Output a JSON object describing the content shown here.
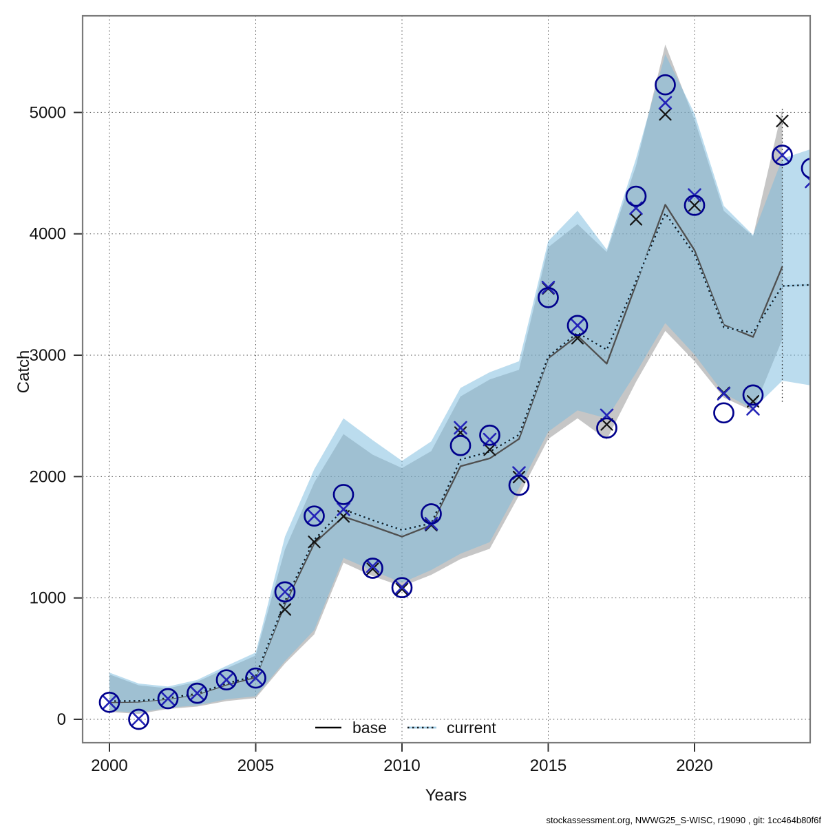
{
  "figure": {
    "xlabel": "Years",
    "ylabel": "Catch",
    "footer": "stockassessment.org, NWWG25_S-WISC, r19090 , git: 1cc464b80f6f",
    "legend": {
      "base_label": "base",
      "current_label": "current"
    }
  },
  "chart_data": {
    "type": "line",
    "title": "",
    "xlabel": "Years",
    "ylabel": "Catch",
    "grid": true,
    "legend_position": "bottom-center-inside",
    "legend": [
      "base",
      "current"
    ],
    "x_ticks": [
      2000,
      2005,
      2010,
      2015,
      2020
    ],
    "y_ticks": [
      0,
      1000,
      2000,
      3000,
      4000,
      5000
    ],
    "xlim": [
      1999.1,
      2023.95
    ],
    "ylim": [
      -190,
      5790
    ],
    "vline_year": 2023,
    "colors": {
      "observed_marker": "#00008c",
      "base_marker": "#141414",
      "current_marker": "#2323b8",
      "base_line": "#4f4f4f",
      "current_line_dark": "#131a20",
      "current_line_light": "#9ecbe4",
      "base_band": "rgba(128,128,128,0.45)",
      "current_band": "rgba(120,186,222,0.5)",
      "grid": "#4d4d4d",
      "frame": "#7a7a7a"
    },
    "years": [
      2000,
      2001,
      2002,
      2003,
      2004,
      2005,
      2006,
      2007,
      2008,
      2009,
      2010,
      2011,
      2012,
      2013,
      2014,
      2015,
      2016,
      2017,
      2018,
      2019,
      2020,
      2021,
      2022,
      2023,
      2024
    ],
    "series": [
      {
        "name": "observed-catch",
        "marker": "circle",
        "values": [
          140,
          0,
          170,
          215,
          325,
          340,
          1050,
          1675,
          1852,
          1245,
          1085,
          1693,
          2256,
          2341,
          1928,
          3475,
          3245,
          2400,
          4310,
          5228,
          4235,
          2525,
          2672,
          4648,
          4540
        ]
      },
      {
        "name": "base-estimate",
        "marker": "x",
        "values": [
          140,
          5,
          170,
          215,
          325,
          340,
          905,
          1462,
          1672,
          1240,
          1072,
          1600,
          2362,
          2222,
          1996,
          3550,
          3140,
          2430,
          4120,
          4985,
          4235,
          2690,
          2620,
          4930,
          null
        ]
      },
      {
        "name": "current-estimate",
        "marker": "x",
        "values": [
          140,
          5,
          170,
          215,
          325,
          340,
          1050,
          1675,
          1730,
          1262,
          1088,
          1612,
          2402,
          2305,
          2030,
          3558,
          3245,
          2505,
          4212,
          5080,
          4320,
          2683,
          2558,
          4648,
          4432
        ]
      },
      {
        "name": "base-fit",
        "style": "solid",
        "values": [
          140,
          145,
          168,
          205,
          285,
          345,
          950,
          1450,
          1670,
          1590,
          1505,
          1600,
          2085,
          2150,
          2310,
          2975,
          3160,
          2930,
          3585,
          4240,
          3865,
          3250,
          3150,
          3730,
          null
        ]
      },
      {
        "name": "current-fit",
        "style": "dotted",
        "values": [
          150,
          152,
          175,
          212,
          295,
          358,
          975,
          1480,
          1730,
          1640,
          1560,
          1615,
          2140,
          2205,
          2345,
          2990,
          3185,
          3045,
          3610,
          4170,
          3830,
          3230,
          3185,
          3570,
          3580
        ]
      }
    ],
    "bands": [
      {
        "name": "base-ci",
        "lo": [
          60,
          45,
          85,
          105,
          150,
          175,
          460,
          700,
          1290,
          1180,
          1095,
          1190,
          1320,
          1405,
          1845,
          2310,
          2480,
          2305,
          2780,
          3200,
          2950,
          2650,
          2540,
          3130,
          null
        ],
        "hi": [
          370,
          280,
          255,
          310,
          420,
          525,
          1400,
          1950,
          2350,
          2180,
          2070,
          2210,
          2660,
          2800,
          2880,
          3890,
          4080,
          3850,
          4560,
          5560,
          4940,
          4190,
          3980,
          5030,
          null
        ]
      },
      {
        "name": "current-ci",
        "lo": [
          70,
          55,
          95,
          115,
          165,
          190,
          480,
          735,
          1330,
          1225,
          1125,
          1230,
          1365,
          1460,
          1905,
          2370,
          2545,
          2480,
          2855,
          3265,
          3005,
          2685,
          2555,
          2790,
          2750
        ],
        "hi": [
          385,
          295,
          270,
          325,
          440,
          550,
          1505,
          2060,
          2480,
          2300,
          2130,
          2290,
          2730,
          2860,
          2950,
          3940,
          4190,
          3870,
          4620,
          5480,
          4990,
          4230,
          3990,
          4620,
          4700
        ]
      }
    ]
  }
}
